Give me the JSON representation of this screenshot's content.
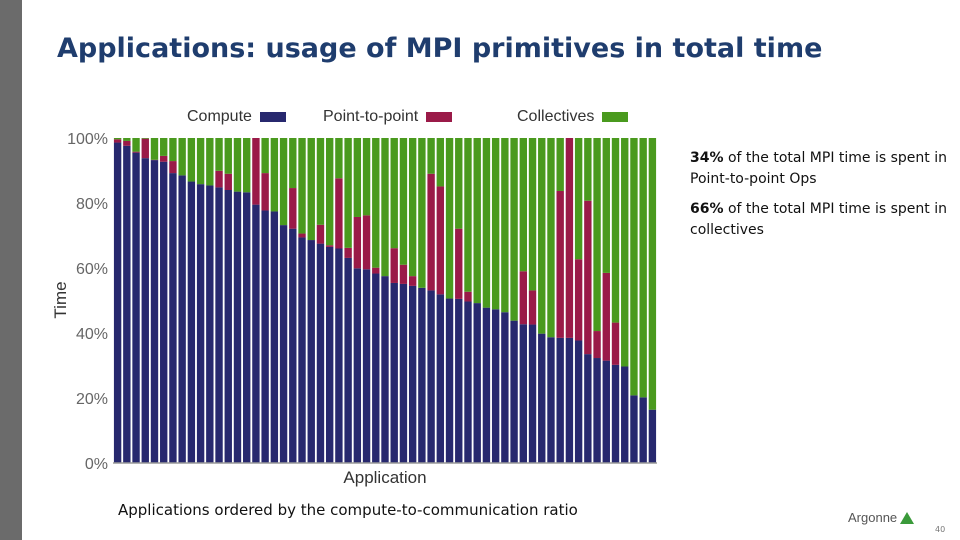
{
  "title": "Applications: usage of MPI primitives in total time",
  "notes": [
    {
      "bold": "34%",
      "text": " of the total MPI time is spent in Point-to-point Ops"
    },
    {
      "bold": "66%",
      "text": " of the total MPI time is spent in collectives"
    }
  ],
  "caption": "Applications ordered by the compute-to-communication ratio",
  "logo_text": "Argonne",
  "page_number": "40",
  "chart_data": {
    "type": "bar",
    "stacked": true,
    "xlabel": "Application",
    "ylabel": "Time",
    "ylim": [
      0,
      100
    ],
    "ytick_labels": [
      "0%",
      "20%",
      "40%",
      "60%",
      "80%",
      "100%"
    ],
    "yticks": [
      0,
      20,
      40,
      60,
      80,
      100
    ],
    "grid": false,
    "legend_position": "top",
    "series": [
      {
        "name": "Compute",
        "color": "#27286e",
        "values": [
          98.6,
          97.6,
          95.5,
          93.8,
          93.2,
          92.7,
          89.2,
          88.5,
          86.6,
          85.8,
          85.4,
          84.8,
          84,
          83.5,
          83.3,
          79.5,
          77.7,
          77.4,
          73.2,
          72.1,
          69.4,
          68.6,
          67.5,
          66.5,
          66,
          63.1,
          59.9,
          59.6,
          58.3,
          57.5,
          55.4,
          55.1,
          54.5,
          53.9,
          53.1,
          51.9,
          50.6,
          50.5,
          49.7,
          49.2,
          47.8,
          47.3,
          46.4,
          43.8,
          42.7,
          42.6,
          39.8,
          38.7,
          38.5,
          38.5,
          37.7,
          33.5,
          32.3,
          31.5,
          30.2,
          29.7,
          20.8,
          20.2,
          16.4
        ]
      },
      {
        "name": "Point-to-point",
        "color": "#9a1a48",
        "values": [
          1,
          1.5,
          0.3,
          6,
          0.1,
          1.8,
          3.7,
          0,
          0,
          0,
          0,
          5.1,
          5,
          0,
          0,
          20.5,
          11.5,
          0,
          0,
          12.5,
          1.2,
          0,
          5.8,
          0.5,
          21.6,
          3.1,
          15.8,
          16.6,
          1.8,
          0,
          10.7,
          5.9,
          3,
          0,
          35.9,
          33.2,
          0,
          21.6,
          3,
          0,
          0,
          0,
          0,
          0,
          16.3,
          10.5,
          0,
          0,
          45.2,
          61.5,
          25,
          47.2,
          8.3,
          27,
          13,
          0,
          0,
          0,
          0
        ]
      },
      {
        "name": "Collectives",
        "color": "#4a9a1e",
        "values": [
          0.4,
          0.9,
          4.2,
          0.2,
          6.7,
          5.5,
          7.1,
          11.5,
          13.4,
          14.2,
          14.6,
          10.1,
          11,
          16.5,
          16.7,
          0,
          10.8,
          22.6,
          26.8,
          15.4,
          29.4,
          31.4,
          26.7,
          33,
          12.4,
          33.8,
          24.3,
          23.8,
          39.9,
          42.5,
          33.9,
          39,
          42.5,
          46.1,
          11,
          14.9,
          49.4,
          27.9,
          47.3,
          50.8,
          52.2,
          52.7,
          53.6,
          56.2,
          41,
          46.9,
          60.2,
          61.3,
          16.3,
          0,
          37.3,
          19.3,
          59.4,
          41.5,
          56.8,
          70.3,
          79.2,
          79.8,
          83.6
        ]
      }
    ]
  }
}
